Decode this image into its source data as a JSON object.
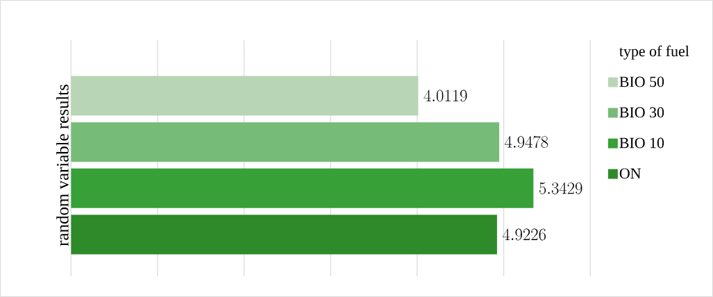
{
  "chart_data": {
    "type": "bar",
    "orientation": "horizontal",
    "ylabel": "random variable results",
    "legend_title": "type of fuel",
    "categories": [
      null
    ],
    "series": [
      {
        "name": "BIO 50",
        "color": "#b8d5b5",
        "values": [
          4.0119
        ]
      },
      {
        "name": "BIO 30",
        "color": "#77bb79",
        "values": [
          4.9478
        ]
      },
      {
        "name": "BIO 10",
        "color": "#37a037",
        "values": [
          5.3429
        ]
      },
      {
        "name": "ON",
        "color": "#2f8a2a",
        "values": [
          4.9226
        ]
      }
    ],
    "xlim": [
      0,
      6
    ],
    "xticks": [
      {
        "value": 0,
        "label": null
      },
      {
        "value": 1,
        "label": null
      },
      {
        "value": 2,
        "label": null
      },
      {
        "value": 3,
        "label": null
      },
      {
        "value": 4,
        "label": null
      },
      {
        "value": 5,
        "label": null
      },
      {
        "value": 6,
        "label": null
      }
    ],
    "tick_labels": false,
    "grid": "x",
    "legend": "right",
    "data_labels": true
  }
}
